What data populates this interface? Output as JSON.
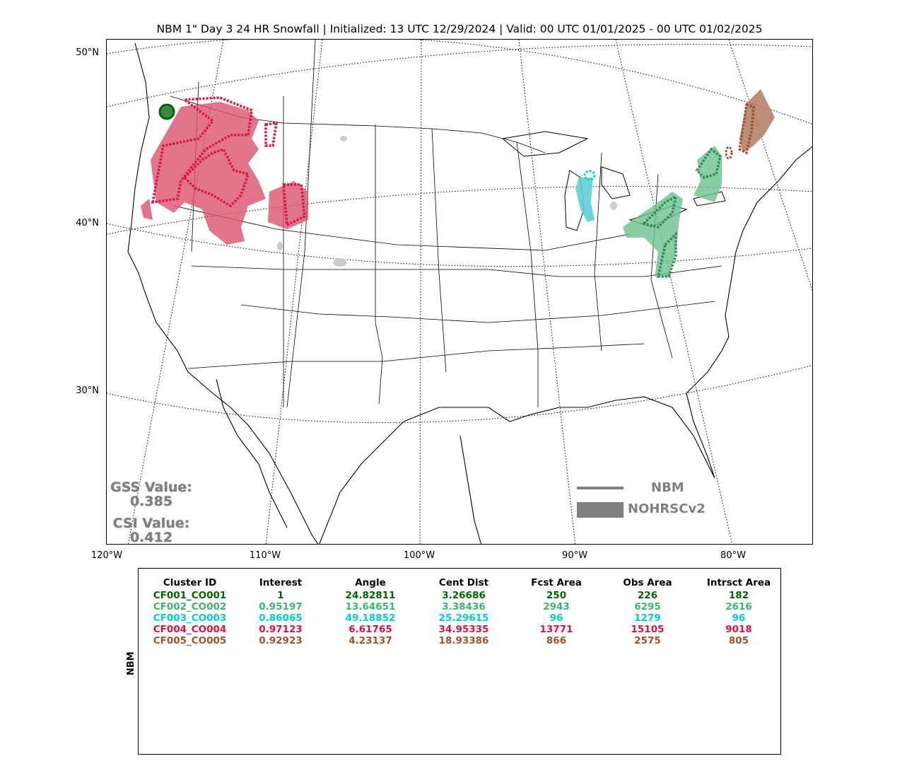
{
  "title": "NBM 1\" Day 3 24 HR Snowfall | Initialized: 13 UTC 12/29/2024 | Valid: 00 UTC 01/01/2025 - 00 UTC 01/02/2025",
  "map": {
    "lat_labels": [
      "50°N",
      "40°N",
      "30°N"
    ],
    "lon_labels": [
      "120°W",
      "110°W",
      "100°W",
      "90°W",
      "80°W"
    ],
    "stats": {
      "gss_label": "GSS Value:",
      "gss_value": "0.385",
      "csi_label": "CSI Value:",
      "csi_value": "0.412"
    },
    "legend": {
      "line_label": "NBM",
      "fill_label": "NOHRSCv2",
      "color": "#808080"
    }
  },
  "table": {
    "ylabel": "NBM",
    "headers": [
      "Cluster ID",
      "Interest",
      "Angle",
      "Cent Dist",
      "Fcst Area",
      "Obs Area",
      "Intrsct Area"
    ],
    "rows": [
      {
        "color": "#006400",
        "cells": [
          "CF001_CO001",
          "1",
          "24.82811",
          "3.26686",
          "250",
          "226",
          "182"
        ]
      },
      {
        "color": "#3cb371",
        "cells": [
          "CF002_CO002",
          "0.95197",
          "13.64651",
          "3.38436",
          "2943",
          "6295",
          "2616"
        ]
      },
      {
        "color": "#00ced1",
        "cells": [
          "CF003_CO003",
          "0.86065",
          "49.18852",
          "25.29615",
          "96",
          "1279",
          "96"
        ]
      },
      {
        "color": "#dc143c",
        "cells": [
          "CF004_CO004",
          "0.97123",
          "6.61765",
          "34.95335",
          "13771",
          "15105",
          "9018"
        ]
      },
      {
        "color": "#a0522d",
        "cells": [
          "CF005_CO005",
          "0.92923",
          "4.23137",
          "18.93386",
          "866",
          "2575",
          "805"
        ]
      }
    ]
  }
}
